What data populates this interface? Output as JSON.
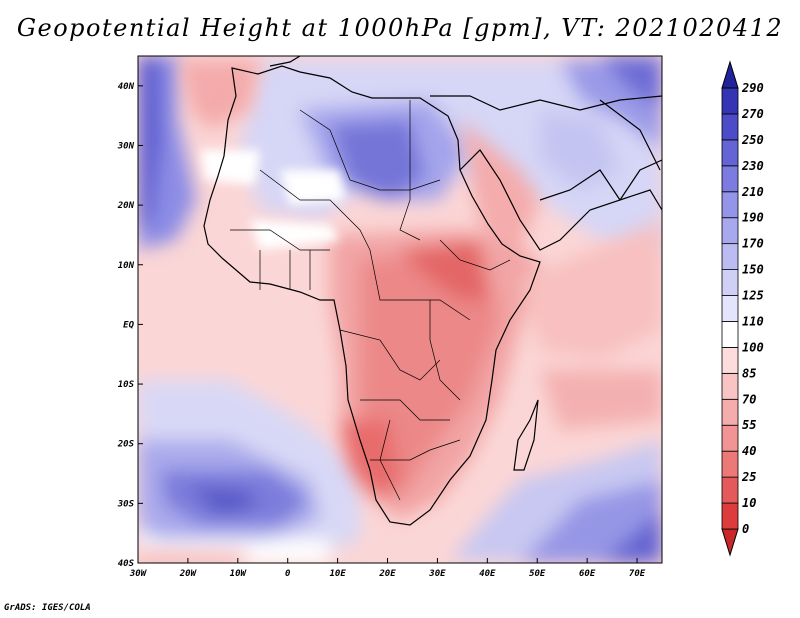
{
  "title": "Geopotential Height at 1000hPa [gpm], VT: 2021020412",
  "credit": "GrADS: IGES/COLA",
  "map": {
    "lon_range": [
      -30,
      75
    ],
    "lat_range": [
      -40,
      45
    ],
    "lat_ticks": [
      {
        "value": 40,
        "label": "40N"
      },
      {
        "value": 30,
        "label": "30N"
      },
      {
        "value": 20,
        "label": "20N"
      },
      {
        "value": 10,
        "label": "10N"
      },
      {
        "value": 0,
        "label": "EQ"
      },
      {
        "value": -10,
        "label": "10S"
      },
      {
        "value": -20,
        "label": "20S"
      },
      {
        "value": -30,
        "label": "30S"
      },
      {
        "value": -40,
        "label": "40S"
      }
    ],
    "lon_ticks": [
      {
        "value": -30,
        "label": "30W"
      },
      {
        "value": -20,
        "label": "20W"
      },
      {
        "value": -10,
        "label": "10W"
      },
      {
        "value": 0,
        "label": "0"
      },
      {
        "value": 10,
        "label": "10E"
      },
      {
        "value": 20,
        "label": "20E"
      },
      {
        "value": 30,
        "label": "30E"
      },
      {
        "value": 40,
        "label": "40E"
      },
      {
        "value": 50,
        "label": "50E"
      },
      {
        "value": 60,
        "label": "60E"
      },
      {
        "value": 70,
        "label": "70E"
      }
    ]
  },
  "colorbar": {
    "levels": [
      "0",
      "10",
      "25",
      "40",
      "55",
      "70",
      "85",
      "100",
      "110",
      "125",
      "150",
      "170",
      "190",
      "210",
      "230",
      "250",
      "270",
      "290"
    ],
    "colors": [
      "#c8282a",
      "#dc3c3c",
      "#e45a5a",
      "#ec7878",
      "#f09494",
      "#f4acac",
      "#f8c4c4",
      "#fcdcdc",
      "#ffffff",
      "#e4e4fa",
      "#d0d0f6",
      "#bcbcf2",
      "#a8a8ee",
      "#9494e8",
      "#7c7ce0",
      "#6464d6",
      "#4c4cc8",
      "#3434b4",
      "#22229a"
    ]
  }
}
